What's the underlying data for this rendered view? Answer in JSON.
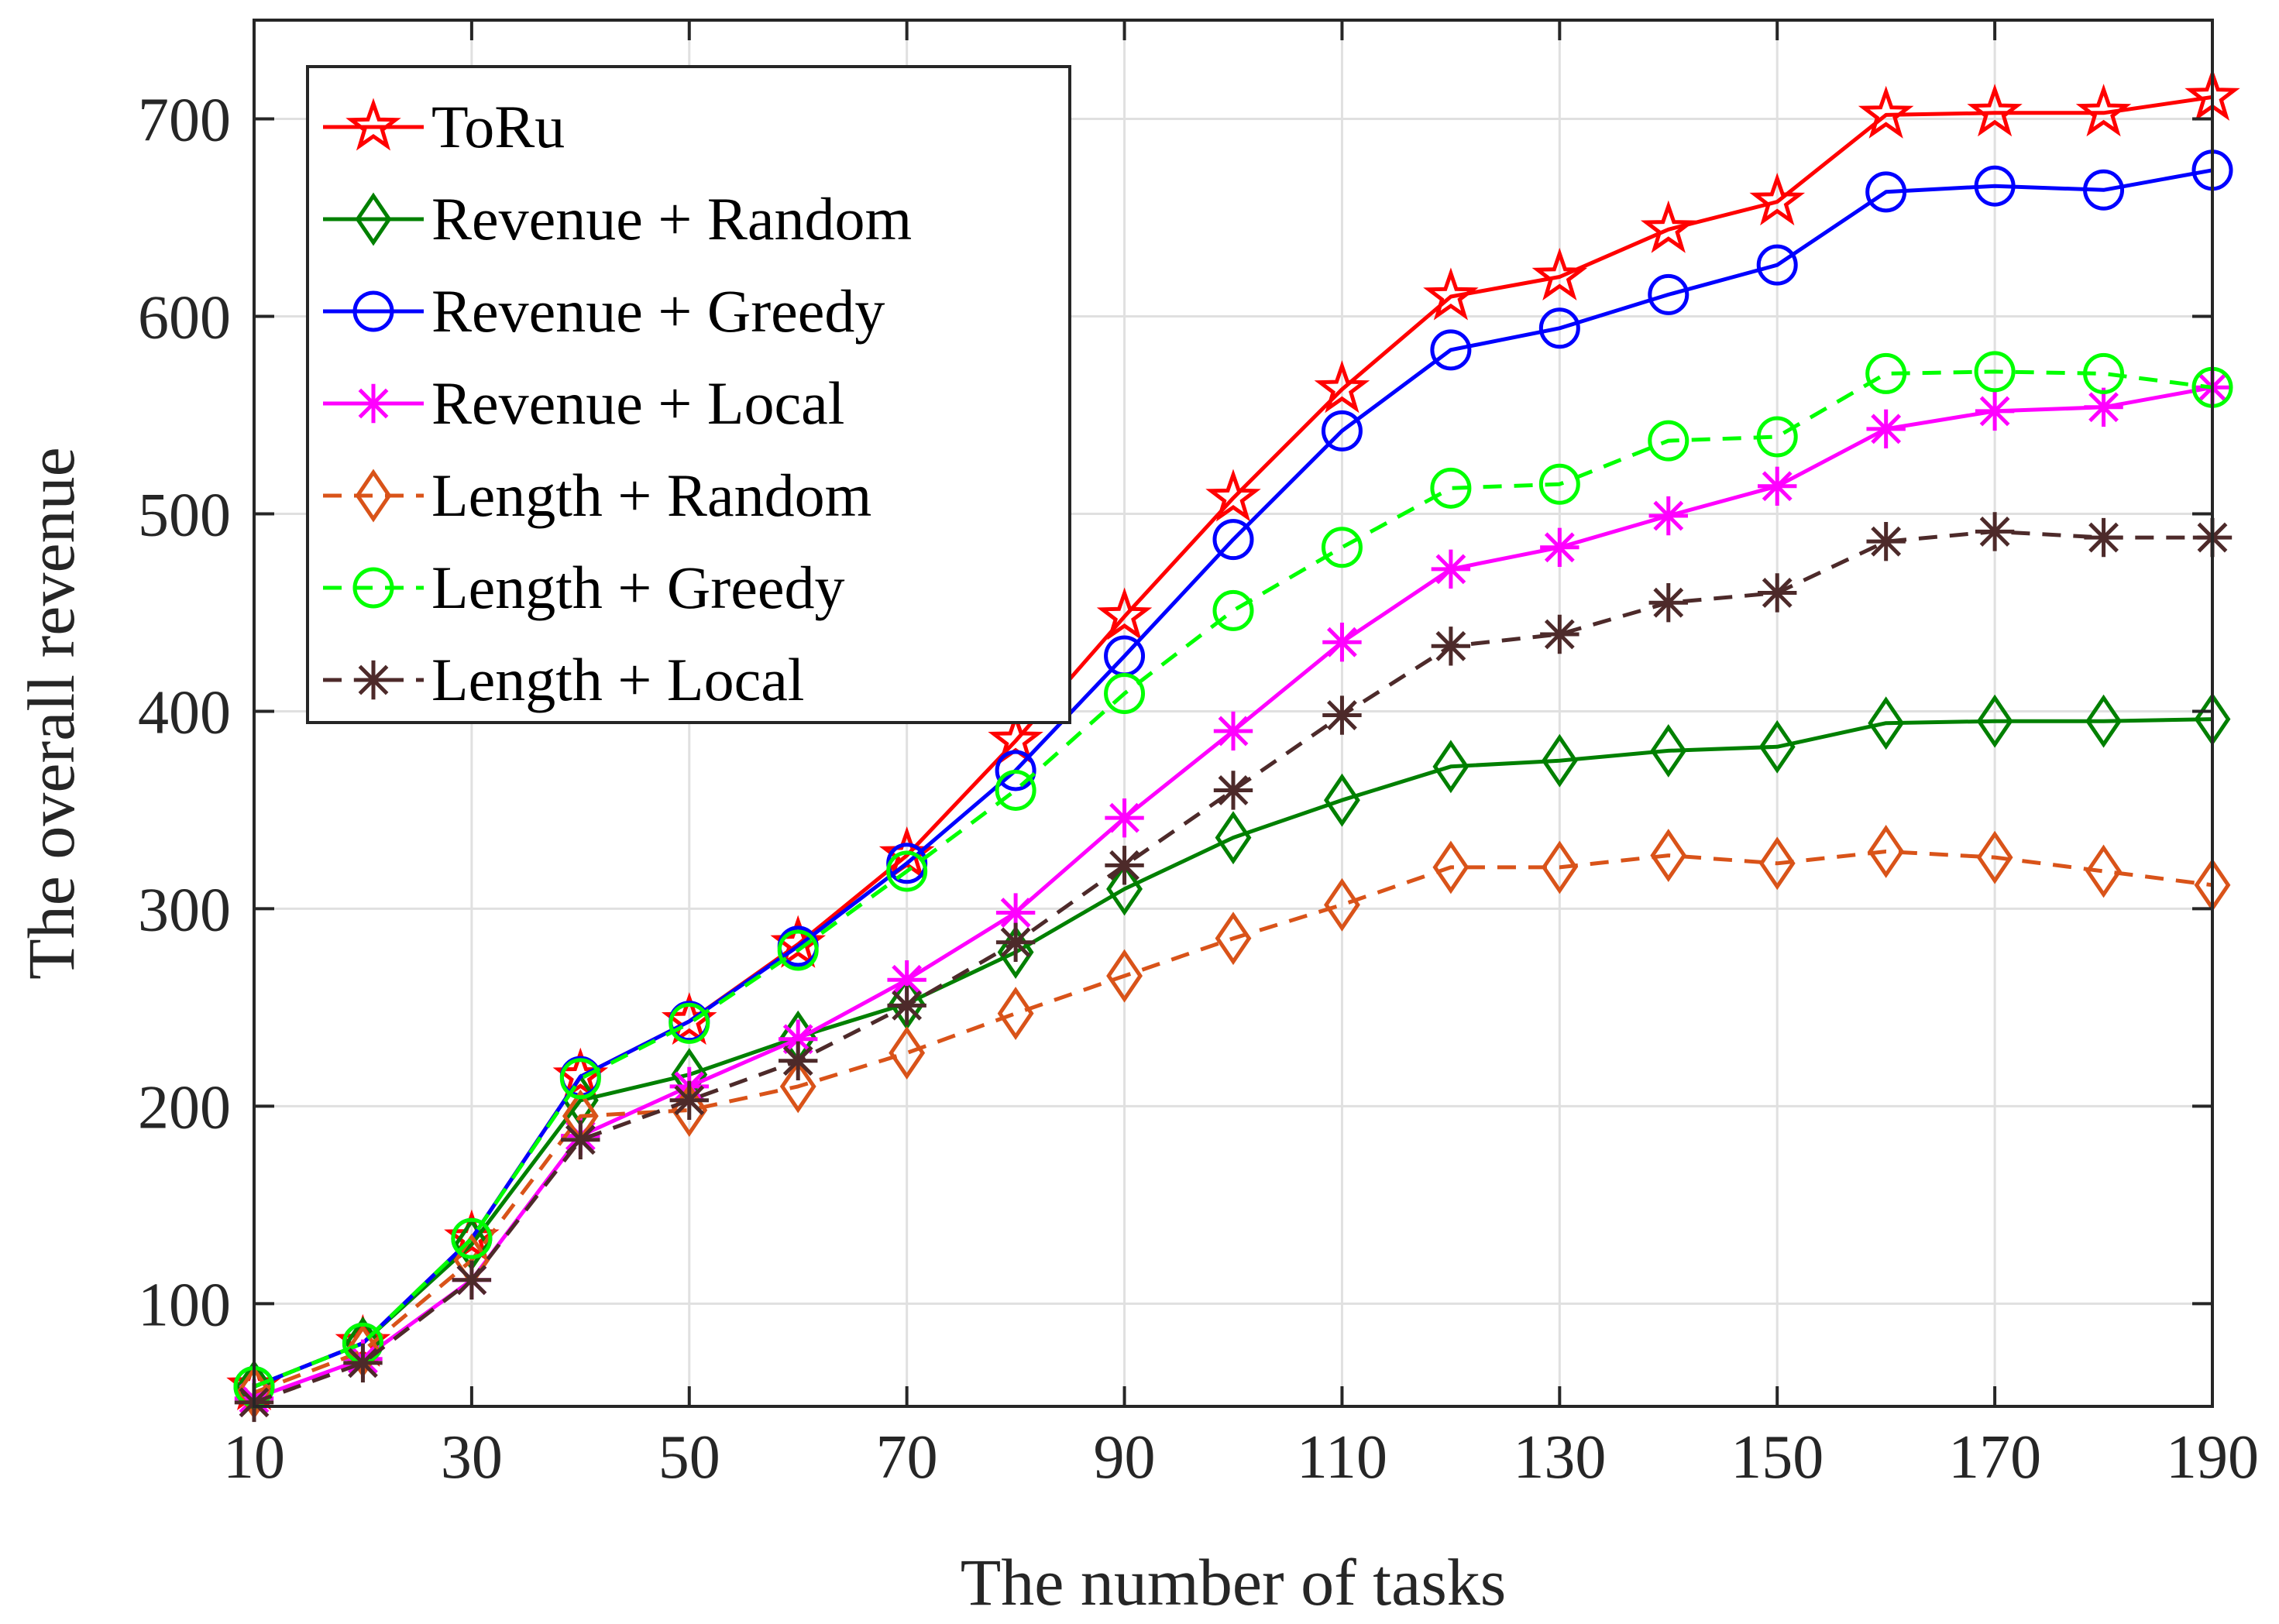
{
  "chart_data": {
    "type": "line",
    "title": "",
    "xlabel": "The number of tasks",
    "ylabel": "The overall revenue",
    "xlim": [
      10,
      190
    ],
    "ylim": [
      48,
      750
    ],
    "x": [
      10,
      20,
      30,
      40,
      50,
      60,
      70,
      80,
      90,
      100,
      110,
      120,
      130,
      140,
      150,
      160,
      170,
      180,
      190
    ],
    "xticks": [
      10,
      30,
      50,
      70,
      90,
      110,
      130,
      150,
      170,
      190
    ],
    "xtick_labels": [
      "10",
      "30",
      "50",
      "70",
      "90",
      "110",
      "130",
      "150",
      "170",
      "190"
    ],
    "yticks": [
      100,
      200,
      300,
      400,
      500,
      600,
      700
    ],
    "ytick_labels": [
      "100",
      "200",
      "300",
      "400",
      "500",
      "600",
      "700"
    ],
    "grid": true,
    "legend_position": "top-left",
    "series": [
      {
        "name": "ToRu",
        "color": "#ff0000",
        "marker": "star",
        "dash": "solid",
        "values": [
          58,
          80,
          133,
          215,
          243,
          282,
          327,
          385,
          448,
          508,
          563,
          610,
          620,
          644,
          658,
          702,
          703,
          703,
          711
        ]
      },
      {
        "name": "Revenue + Random",
        "color": "#008000",
        "marker": "diamond",
        "dash": "solid",
        "values": [
          58,
          80,
          130,
          203,
          216,
          235,
          252,
          278,
          310,
          336,
          355,
          372,
          375,
          380,
          382,
          394,
          395,
          395,
          396
        ]
      },
      {
        "name": "Revenue + Greedy",
        "color": "#0000ff",
        "marker": "circle",
        "dash": "solid",
        "values": [
          58,
          80,
          133,
          215,
          243,
          281,
          323,
          370,
          428,
          487,
          542,
          583,
          594,
          611,
          626,
          663,
          666,
          664,
          674
        ]
      },
      {
        "name": "Revenue + Local",
        "color": "#ff00ff",
        "marker": "asterisk",
        "dash": "solid",
        "values": [
          52,
          72,
          112,
          185,
          210,
          234,
          264,
          298,
          346,
          390,
          435,
          472,
          483,
          499,
          514,
          543,
          552,
          554,
          564
        ]
      },
      {
        "name": "Length + Random",
        "color": "#d95319",
        "marker": "diamond",
        "dash": "dashed",
        "values": [
          55,
          76,
          122,
          195,
          198,
          210,
          227,
          247,
          266,
          285,
          302,
          321,
          321,
          327,
          323,
          329,
          326,
          319,
          312
        ]
      },
      {
        "name": "Length + Greedy",
        "color": "#00ff00",
        "marker": "circle",
        "dash": "dashed",
        "values": [
          58,
          80,
          133,
          214,
          242,
          279,
          319,
          360,
          409,
          451,
          483,
          513,
          515,
          537,
          539,
          571,
          572,
          571,
          564
        ]
      },
      {
        "name": "Length + Local",
        "color": "#4d2a2a",
        "marker": "asterisk",
        "dash": "dashed",
        "values": [
          50,
          70,
          112,
          183,
          203,
          223,
          251,
          283,
          322,
          360,
          398,
          433,
          439,
          455,
          460,
          486,
          491,
          488,
          488
        ]
      }
    ]
  }
}
